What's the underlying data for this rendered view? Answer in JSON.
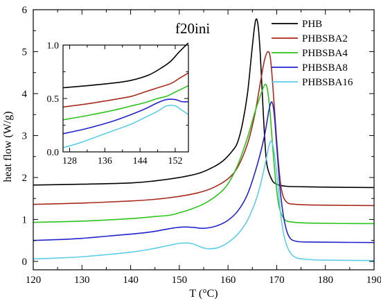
{
  "chart_data": {
    "type": "line",
    "xlabel": "T (°C)",
    "ylabel": "heat flow (W/g)",
    "annotation": "f20ini",
    "xlim": [
      120,
      190
    ],
    "ylim": [
      -0.2,
      6
    ],
    "xticks": [
      120,
      130,
      140,
      150,
      160,
      170,
      180,
      190
    ],
    "yticks": [
      0,
      1,
      2,
      3,
      4,
      5,
      6
    ],
    "grid": false,
    "legend": "top-right",
    "series": [
      {
        "name": "PHB",
        "color": "#000000",
        "points": [
          [
            120,
            1.82
          ],
          [
            130,
            1.84
          ],
          [
            140,
            1.87
          ],
          [
            145,
            1.92
          ],
          [
            150,
            2.0
          ],
          [
            154,
            2.1
          ],
          [
            157,
            2.25
          ],
          [
            159,
            2.4
          ],
          [
            161,
            2.65
          ],
          [
            162,
            2.85
          ],
          [
            163,
            3.3
          ],
          [
            164,
            4.0
          ],
          [
            164.8,
            4.9
          ],
          [
            165.4,
            5.55
          ],
          [
            165.8,
            5.78
          ],
          [
            166.2,
            5.6
          ],
          [
            166.6,
            5.0
          ],
          [
            167,
            4.1
          ],
          [
            167.5,
            3.0
          ],
          [
            168,
            2.3
          ],
          [
            169,
            1.95
          ],
          [
            170,
            1.84
          ],
          [
            172,
            1.79
          ],
          [
            175,
            1.78
          ],
          [
            180,
            1.77
          ],
          [
            190,
            1.76
          ]
        ]
      },
      {
        "name": "PHBSBA2",
        "color": "#a82a1c",
        "points": [
          [
            120,
            1.36
          ],
          [
            130,
            1.39
          ],
          [
            140,
            1.44
          ],
          [
            145,
            1.48
          ],
          [
            150,
            1.55
          ],
          [
            154,
            1.64
          ],
          [
            157,
            1.76
          ],
          [
            160,
            1.97
          ],
          [
            162,
            2.25
          ],
          [
            164,
            2.8
          ],
          [
            165.5,
            3.5
          ],
          [
            166.7,
            4.3
          ],
          [
            167.5,
            4.8
          ],
          [
            168.2,
            5.0
          ],
          [
            168.7,
            4.85
          ],
          [
            169.2,
            4.2
          ],
          [
            169.8,
            3.2
          ],
          [
            170.4,
            2.3
          ],
          [
            171,
            1.7
          ],
          [
            172,
            1.42
          ],
          [
            174,
            1.36
          ],
          [
            180,
            1.34
          ],
          [
            190,
            1.33
          ]
        ]
      },
      {
        "name": "PHBSBA4",
        "color": "#2cc41a",
        "points": [
          [
            120,
            0.93
          ],
          [
            130,
            0.96
          ],
          [
            140,
            1.02
          ],
          [
            145,
            1.07
          ],
          [
            148,
            1.1
          ],
          [
            150,
            1.16
          ],
          [
            152,
            1.23
          ],
          [
            155,
            1.37
          ],
          [
            158,
            1.6
          ],
          [
            160,
            1.85
          ],
          [
            162,
            2.3
          ],
          [
            164,
            2.95
          ],
          [
            165.5,
            3.55
          ],
          [
            166.8,
            4.0
          ],
          [
            167.6,
            4.22
          ],
          [
            168.1,
            4.1
          ],
          [
            168.6,
            3.6
          ],
          [
            169.2,
            2.7
          ],
          [
            169.8,
            1.9
          ],
          [
            170.5,
            1.3
          ],
          [
            171.5,
            1.02
          ],
          [
            173,
            0.94
          ],
          [
            178,
            0.91
          ],
          [
            190,
            0.9
          ]
        ]
      },
      {
        "name": "PHBSBA8",
        "color": "#2222cc",
        "points": [
          [
            120,
            0.5
          ],
          [
            125,
            0.52
          ],
          [
            130,
            0.55
          ],
          [
            135,
            0.6
          ],
          [
            140,
            0.65
          ],
          [
            144,
            0.7
          ],
          [
            147,
            0.76
          ],
          [
            149,
            0.8
          ],
          [
            151,
            0.82
          ],
          [
            153,
            0.81
          ],
          [
            154.5,
            0.79
          ],
          [
            156,
            0.8
          ],
          [
            158,
            0.86
          ],
          [
            160,
            0.98
          ],
          [
            162,
            1.2
          ],
          [
            164,
            1.6
          ],
          [
            166,
            2.3
          ],
          [
            167.5,
            3.0
          ],
          [
            168.4,
            3.6
          ],
          [
            169,
            3.8
          ],
          [
            169.5,
            3.5
          ],
          [
            170.1,
            2.6
          ],
          [
            170.8,
            1.6
          ],
          [
            171.6,
            0.95
          ],
          [
            172.5,
            0.6
          ],
          [
            174,
            0.48
          ],
          [
            178,
            0.46
          ],
          [
            190,
            0.45
          ]
        ]
      },
      {
        "name": "PHBSBA16",
        "color": "#5dcde8",
        "points": [
          [
            120,
            0.06
          ],
          [
            125,
            0.08
          ],
          [
            130,
            0.11
          ],
          [
            135,
            0.16
          ],
          [
            140,
            0.22
          ],
          [
            144,
            0.29
          ],
          [
            147,
            0.36
          ],
          [
            149.5,
            0.42
          ],
          [
            151.5,
            0.44
          ],
          [
            153,
            0.41
          ],
          [
            154.5,
            0.34
          ],
          [
            156,
            0.3
          ],
          [
            158,
            0.33
          ],
          [
            160,
            0.45
          ],
          [
            162,
            0.65
          ],
          [
            164,
            0.98
          ],
          [
            166,
            1.55
          ],
          [
            167.5,
            2.25
          ],
          [
            168.4,
            2.75
          ],
          [
            169,
            2.85
          ],
          [
            169.6,
            2.5
          ],
          [
            170.3,
            1.75
          ],
          [
            171,
            0.95
          ],
          [
            172,
            0.4
          ],
          [
            173.5,
            0.12
          ],
          [
            176,
            0.05
          ],
          [
            180,
            0.03
          ],
          [
            190,
            0.02
          ]
        ]
      }
    ],
    "inset": {
      "xlim": [
        126.5,
        155
      ],
      "ylim": [
        0,
        1
      ],
      "xticks": [
        128,
        136,
        144,
        152
      ],
      "yticks": [
        0.0,
        0.5,
        1.0
      ],
      "ytick_labels": [
        "0.0",
        "0.5",
        "1.0"
      ],
      "series": [
        {
          "name": "PHB",
          "color": "#000000",
          "points": [
            [
              126.5,
              0.6
            ],
            [
              132,
              0.62
            ],
            [
              138,
              0.645
            ],
            [
              142,
              0.67
            ],
            [
              146,
              0.72
            ],
            [
              149,
              0.79
            ],
            [
              151,
              0.85
            ],
            [
              153,
              0.94
            ],
            [
              155,
              1.02
            ]
          ]
        },
        {
          "name": "PHBSBA2",
          "color": "#a82a1c",
          "points": [
            [
              126.5,
              0.42
            ],
            [
              132,
              0.45
            ],
            [
              138,
              0.49
            ],
            [
              142,
              0.52
            ],
            [
              145,
              0.56
            ],
            [
              148,
              0.6
            ],
            [
              151,
              0.64
            ],
            [
              153,
              0.69
            ],
            [
              155,
              0.74
            ]
          ]
        },
        {
          "name": "PHBSBA4",
          "color": "#2cc41a",
          "points": [
            [
              126.5,
              0.3
            ],
            [
              132,
              0.34
            ],
            [
              138,
              0.39
            ],
            [
              142,
              0.43
            ],
            [
              145,
              0.46
            ],
            [
              148,
              0.5
            ],
            [
              150,
              0.52
            ],
            [
              152,
              0.56
            ],
            [
              155,
              0.62
            ]
          ]
        },
        {
          "name": "PHBSBA8",
          "color": "#2222cc",
          "points": [
            [
              126.5,
              0.17
            ],
            [
              132,
              0.22
            ],
            [
              138,
              0.29
            ],
            [
              142,
              0.35
            ],
            [
              145,
              0.4
            ],
            [
              148,
              0.46
            ],
            [
              150,
              0.49
            ],
            [
              152,
              0.49
            ],
            [
              153.5,
              0.47
            ],
            [
              155,
              0.47
            ]
          ]
        },
        {
          "name": "PHBSBA16",
          "color": "#5dcde8",
          "points": [
            [
              126.5,
              0.04
            ],
            [
              130,
              0.08
            ],
            [
              134,
              0.14
            ],
            [
              138,
              0.2
            ],
            [
              142,
              0.26
            ],
            [
              145,
              0.32
            ],
            [
              148,
              0.38
            ],
            [
              150,
              0.43
            ],
            [
              152,
              0.43
            ],
            [
              153.5,
              0.39
            ],
            [
              155,
              0.35
            ]
          ]
        }
      ]
    }
  }
}
